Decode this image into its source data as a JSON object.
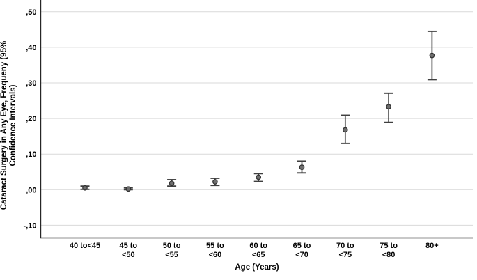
{
  "chart_data": {
    "type": "scatter",
    "subtype": "errorbar-means-with-95ci",
    "title": "",
    "xlabel": "Age (Years)",
    "ylabel": "Cataract Surgery in Any Eye, Frequeny (95% Confidence Intervals)",
    "ylabel_line1": "Cataract Surgery in Any Eye, Frequeny (95%",
    "ylabel_line2": "Confidence Intervals)",
    "categories": [
      "40 to<45",
      "45 to <50",
      "50 to <55",
      "55 to <60",
      "60 to <65",
      "65 to <70",
      "70 to <75",
      "75 to <80",
      "80+"
    ],
    "category_tick_lines": [
      [
        "40 to<45"
      ],
      [
        "45 to",
        "<50"
      ],
      [
        "50 to",
        "<55"
      ],
      [
        "55 to",
        "<60"
      ],
      [
        "60 to",
        "<65"
      ],
      [
        "65 to",
        "<70"
      ],
      [
        "70 to",
        "<75"
      ],
      [
        "75 to",
        "<80"
      ],
      [
        "80+"
      ]
    ],
    "values": [
      0.005,
      0.002,
      0.018,
      0.022,
      0.035,
      0.063,
      0.168,
      0.233,
      0.377
    ],
    "ci_low": [
      0.001,
      0.0,
      0.01,
      0.012,
      0.023,
      0.047,
      0.13,
      0.189,
      0.309
    ],
    "ci_high": [
      0.01,
      0.005,
      0.028,
      0.032,
      0.045,
      0.08,
      0.209,
      0.271,
      0.445
    ],
    "yticks": [
      {
        "label": ",50",
        "value": 0.5
      },
      {
        "label": ",40",
        "value": 0.4
      },
      {
        "label": ",30",
        "value": 0.3
      },
      {
        "label": ",20",
        "value": 0.2
      },
      {
        "label": ",10",
        "value": 0.1
      },
      {
        "label": ",00",
        "value": 0.0
      },
      {
        "label": "-,10",
        "value": -0.1
      }
    ],
    "ylim": [
      -0.137,
      0.52
    ],
    "grid": "horizontal-only",
    "legend": "none",
    "colors": {
      "marker_fill": "#6e6e6e",
      "marker_stroke": "#333333",
      "errorbar": "#3f3f3f",
      "gridline": "#d9d9d9",
      "axis": "#262626",
      "text": "#000000",
      "background": "#ffffff"
    }
  }
}
